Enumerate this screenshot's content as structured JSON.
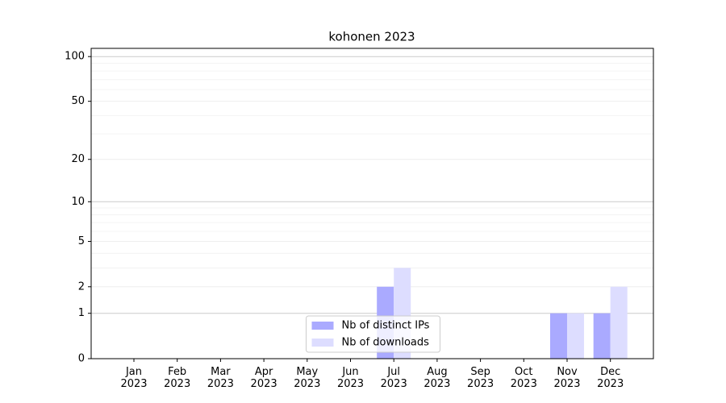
{
  "chart_data": {
    "type": "bar",
    "title": "kohonen 2023",
    "categories": [
      "Jan 2023",
      "Feb 2023",
      "Mar 2023",
      "Apr 2023",
      "May 2023",
      "Jun 2023",
      "Jul 2023",
      "Aug 2023",
      "Sep 2023",
      "Oct 2023",
      "Nov 2023",
      "Dec 2023"
    ],
    "series": [
      {
        "name": "Nb of distinct IPs",
        "color": "#aaaaff",
        "values": [
          0,
          0,
          0,
          0,
          0,
          0,
          2,
          0,
          0,
          0,
          1,
          1
        ]
      },
      {
        "name": "Nb of downloads",
        "color": "#ddddff",
        "values": [
          0,
          0,
          0,
          0,
          0,
          0,
          3,
          0,
          0,
          0,
          1,
          2
        ]
      }
    ],
    "yscale": "log1p",
    "ylim": [
      0,
      113.5
    ],
    "yticks": [
      0,
      1,
      2,
      5,
      10,
      20,
      50,
      100
    ],
    "minor_grid": [
      3,
      4,
      6,
      7,
      8,
      9,
      30,
      40,
      60,
      70,
      80,
      90
    ],
    "grid": true,
    "legend": "lower center"
  }
}
